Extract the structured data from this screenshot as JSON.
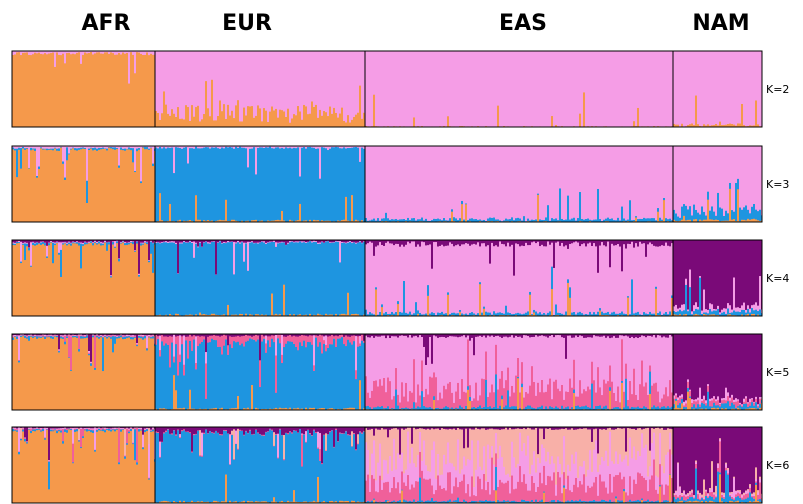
{
  "chart_data": {
    "type": "stacked-bar",
    "title": "",
    "populations": [
      {
        "name": "AFR",
        "share": 0.19
      },
      {
        "name": "EUR",
        "share": 0.28
      },
      {
        "name": "EAS",
        "share": 0.41
      },
      {
        "name": "NAM",
        "share": 0.12
      }
    ],
    "colors": {
      "orange": "#F5994B",
      "pink": "#F59DE6",
      "blue": "#1E95E0",
      "purple": "#7A0A78",
      "magenta": "#F0609A",
      "peach": "#F8B0A8"
    },
    "panels": [
      {
        "k_label": "K=2",
        "components": [
          "orange",
          "pink"
        ],
        "proportions": {
          "AFR": {
            "orange": 0.97,
            "pink": 0.03
          },
          "EUR": {
            "orange": 0.18,
            "pink": 0.82
          },
          "EAS": {
            "orange": 0.01,
            "pink": 0.99
          },
          "NAM": {
            "orange": 0.03,
            "pink": 0.97
          }
        }
      },
      {
        "k_label": "K=3",
        "components": [
          "orange",
          "blue",
          "pink"
        ],
        "proportions": {
          "AFR": {
            "orange": 0.96,
            "blue": 0.02,
            "pink": 0.02
          },
          "EUR": {
            "orange": 0.02,
            "blue": 0.96,
            "pink": 0.02
          },
          "EAS": {
            "orange": 0.01,
            "blue": 0.03,
            "pink": 0.96
          },
          "NAM": {
            "orange": 0.03,
            "blue": 0.12,
            "pink": 0.85
          }
        }
      },
      {
        "k_label": "K=4",
        "components": [
          "orange",
          "blue",
          "pink",
          "purple"
        ],
        "proportions": {
          "AFR": {
            "orange": 0.95,
            "blue": 0.02,
            "pink": 0.01,
            "purple": 0.02
          },
          "EUR": {
            "orange": 0.02,
            "blue": 0.95,
            "pink": 0.01,
            "purple": 0.02
          },
          "EAS": {
            "orange": 0.01,
            "blue": 0.03,
            "pink": 0.91,
            "purple": 0.05
          },
          "NAM": {
            "orange": 0.02,
            "blue": 0.05,
            "pink": 0.06,
            "purple": 0.87
          }
        }
      },
      {
        "k_label": "K=5",
        "components": [
          "orange",
          "blue",
          "magenta",
          "pink",
          "purple"
        ],
        "proportions": {
          "AFR": {
            "orange": 0.95,
            "blue": 0.02,
            "magenta": 0.01,
            "pink": 0.01,
            "purple": 0.01
          },
          "EUR": {
            "orange": 0.02,
            "blue": 0.87,
            "magenta": 0.09,
            "pink": 0.0,
            "purple": 0.02
          },
          "EAS": {
            "orange": 0.01,
            "blue": 0.03,
            "magenta": 0.24,
            "pink": 0.69,
            "purple": 0.03
          },
          "NAM": {
            "orange": 0.02,
            "blue": 0.05,
            "magenta": 0.05,
            "pink": 0.03,
            "purple": 0.85
          }
        }
      },
      {
        "k_label": "K=6",
        "components": [
          "orange",
          "blue",
          "magenta",
          "pink",
          "peach",
          "purple"
        ],
        "proportions": {
          "AFR": {
            "orange": 0.95,
            "blue": 0.02,
            "magenta": 0.01,
            "pink": 0.01,
            "peach": 0.0,
            "purple": 0.01
          },
          "EUR": {
            "orange": 0.02,
            "blue": 0.91,
            "magenta": 0.01,
            "pink": 0.0,
            "peach": 0.0,
            "purple": 0.06
          },
          "EAS": {
            "orange": 0.01,
            "blue": 0.02,
            "magenta": 0.22,
            "pink": 0.3,
            "peach": 0.43,
            "purple": 0.02
          },
          "NAM": {
            "orange": 0.02,
            "blue": 0.04,
            "magenta": 0.04,
            "pink": 0.03,
            "peach": 0.02,
            "purple": 0.85
          }
        }
      }
    ]
  }
}
